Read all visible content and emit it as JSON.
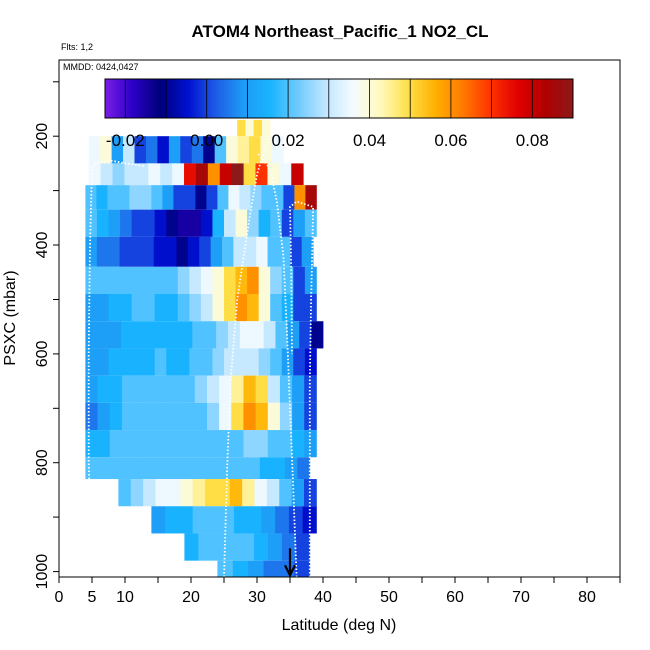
{
  "chart_data": {
    "type": "heatmap",
    "title": "ATOM4 Northeast_Pacific_1 NO2_CL",
    "flights_label": "Flts: 1,2",
    "mmdd_label": "MMDD: 0424,0427",
    "xlabel": "Latitude (deg N)",
    "ylabel": "PSXC (mbar)",
    "xlim": [
      0,
      85
    ],
    "ylim": [
      1010,
      60
    ],
    "x_ticks": [
      0,
      5,
      10,
      20,
      30,
      40,
      50,
      60,
      70,
      80
    ],
    "y_ticks": [
      200,
      400,
      600,
      800,
      1000
    ],
    "colorbar": {
      "range": [
        -0.025,
        0.09
      ],
      "ticks": [
        -0.02,
        0.0,
        0.02,
        0.04,
        0.06,
        0.08
      ],
      "tick_labels": [
        "-0.02",
        "0.00",
        "0.02",
        "0.04",
        "0.06",
        "0.08"
      ],
      "colors": [
        "#7a1ee6",
        "#2b00c8",
        "#00007a",
        "#0010d0",
        "#1e5ae6",
        "#1e9af5",
        "#19b4ff",
        "#6ecaff",
        "#bfe6ff",
        "#f4fbff",
        "#fff9c0",
        "#ffe14a",
        "#ffb000",
        "#ff7a00",
        "#ff3300",
        "#e00000",
        "#b00000",
        "#8b1a1a"
      ]
    },
    "rows": [
      {
        "p0": 170,
        "p1": 200,
        "x0": 27,
        "x1": 32,
        "values": [
          0.05,
          0.04,
          0.05,
          0.04
        ]
      },
      {
        "p0": 200,
        "p1": 250,
        "x0": 4.5,
        "x1": 34,
        "values": [
          0.035,
          0.04,
          0.01,
          0.03,
          0.0,
          0.005,
          -0.005,
          0.01,
          0.0,
          0.005,
          -0.01,
          0.02,
          0.04,
          0.045,
          0.05,
          0.04,
          0.035
        ]
      },
      {
        "p0": 250,
        "p1": 290,
        "x0": 4.5,
        "x1": 37,
        "values": [
          0.035,
          0.03,
          0.025,
          0.03,
          0.03,
          0.035,
          0.03,
          0.035,
          0.075,
          0.085,
          0.06,
          0.08,
          0.09,
          0.05,
          0.07,
          0.04,
          0.035,
          0.08
        ]
      },
      {
        "p0": 290,
        "p1": 335,
        "x0": 4,
        "x1": 39,
        "values": [
          0.02,
          0.015,
          0.02,
          0.02,
          0.025,
          0.025,
          0.02,
          0.01,
          0.0,
          0.0,
          -0.01,
          0.0,
          0.02,
          0.035,
          0.03,
          0.025,
          0.02,
          0.02,
          0.0,
          0.06,
          0.085
        ]
      },
      {
        "p0": 335,
        "p1": 385,
        "x0": 4,
        "x1": 39,
        "values": [
          0.02,
          0.015,
          0.01,
          0.005,
          0.0,
          0.0,
          -0.005,
          -0.01,
          -0.015,
          -0.015,
          -0.005,
          0.015,
          0.03,
          0.04,
          0.025,
          0.015,
          0.02,
          0.0,
          0.01,
          0.02
        ]
      },
      {
        "p0": 385,
        "p1": 440,
        "x0": 4,
        "x1": 38.5,
        "values": [
          0.01,
          0.005,
          0.005,
          0.0,
          0.0,
          0.0,
          -0.005,
          -0.005,
          -0.01,
          -0.005,
          0.0,
          0.01,
          0.02,
          0.03,
          0.03,
          0.035,
          0.02,
          0.02,
          0.0,
          0.01
        ]
      },
      {
        "p0": 440,
        "p1": 490,
        "x0": 4,
        "x1": 39,
        "values": [
          0.02,
          0.02,
          0.02,
          0.02,
          0.02,
          0.02,
          0.02,
          0.02,
          0.025,
          0.03,
          0.035,
          0.04,
          0.05,
          0.055,
          0.06,
          0.04,
          0.025,
          0.02,
          0.0,
          0.01
        ]
      },
      {
        "p0": 490,
        "p1": 540,
        "x0": 4,
        "x1": 39,
        "values": [
          0.01,
          0.01,
          0.015,
          0.015,
          0.02,
          0.02,
          0.015,
          0.015,
          0.02,
          0.025,
          0.03,
          0.04,
          0.05,
          0.06,
          0.055,
          0.04,
          0.02,
          0.015,
          0.0,
          0.0
        ]
      },
      {
        "p0": 540,
        "p1": 590,
        "x0": 4,
        "x1": 40,
        "values": [
          0.01,
          0.01,
          0.01,
          0.015,
          0.015,
          0.015,
          0.015,
          0.015,
          0.015,
          0.02,
          0.02,
          0.025,
          0.03,
          0.035,
          0.035,
          0.03,
          0.02,
          0.01,
          0.0,
          -0.01
        ]
      },
      {
        "p0": 590,
        "p1": 640,
        "x0": 4,
        "x1": 39,
        "values": [
          0.01,
          0.01,
          0.015,
          0.015,
          0.015,
          0.015,
          0.02,
          0.015,
          0.015,
          0.02,
          0.02,
          0.025,
          0.03,
          0.03,
          0.03,
          0.025,
          0.02,
          0.01,
          0.0,
          -0.005
        ]
      },
      {
        "p0": 640,
        "p1": 690,
        "x0": 4,
        "x1": 39,
        "values": [
          0.01,
          0.015,
          0.015,
          0.02,
          0.02,
          0.02,
          0.02,
          0.02,
          0.02,
          0.025,
          0.03,
          0.035,
          0.045,
          0.055,
          0.05,
          0.03,
          0.02,
          0.01,
          0.0
        ]
      },
      {
        "p0": 690,
        "p1": 740,
        "x0": 4,
        "x1": 39,
        "values": [
          0.005,
          0.01,
          0.015,
          0.02,
          0.02,
          0.02,
          0.02,
          0.02,
          0.02,
          0.02,
          0.025,
          0.035,
          0.05,
          0.06,
          0.055,
          0.04,
          0.025,
          0.01,
          0.0
        ]
      },
      {
        "p0": 740,
        "p1": 790,
        "x0": 4,
        "x1": 39,
        "values": [
          0.015,
          0.015,
          0.02,
          0.02,
          0.02,
          0.02,
          0.02,
          0.02,
          0.02,
          0.02,
          0.02,
          0.02,
          0.02,
          0.025,
          0.025,
          0.02,
          0.02,
          0.015,
          0.01
        ]
      },
      {
        "p0": 790,
        "p1": 830,
        "x0": 4,
        "x1": 38,
        "values": [
          0.02,
          0.02,
          0.02,
          0.02,
          0.02,
          0.02,
          0.02,
          0.02,
          0.02,
          0.02,
          0.02,
          0.02,
          0.02,
          0.02,
          0.015,
          0.015,
          0.01,
          0.005
        ]
      },
      {
        "p0": 830,
        "p1": 880,
        "x0": 9,
        "x1": 39,
        "values": [
          0.02,
          0.025,
          0.03,
          0.035,
          0.035,
          0.04,
          0.045,
          0.05,
          0.05,
          0.055,
          0.045,
          0.035,
          0.03,
          0.02,
          0.01,
          0.0
        ]
      },
      {
        "p0": 880,
        "p1": 930,
        "x0": 14,
        "x1": 39,
        "values": [
          0.01,
          0.015,
          0.015,
          0.02,
          0.02,
          0.02,
          0.015,
          0.015,
          0.01,
          0.005,
          0.0,
          -0.005
        ]
      },
      {
        "p0": 930,
        "p1": 980,
        "x0": 19,
        "x1": 38,
        "values": [
          0.015,
          0.02,
          0.02,
          0.02,
          0.02,
          0.015,
          0.01,
          0.005,
          0.0
        ]
      },
      {
        "p0": 980,
        "p1": 1010,
        "x0": 24,
        "x1": 38,
        "values": [
          0.02,
          0.015,
          0.01,
          0.005,
          0.005,
          0.0
        ]
      }
    ],
    "profiles": [
      {
        "points": [
          [
            5,
            1010
          ],
          [
            4.5,
            800
          ],
          [
            4.5,
            600
          ],
          [
            4.7,
            400
          ],
          [
            5,
            260
          ],
          [
            5.5,
            250
          ],
          [
            8,
            245
          ],
          [
            10,
            250
          ],
          [
            13,
            255
          ]
        ]
      },
      {
        "points": [
          [
            25,
            1010
          ],
          [
            25.5,
            800
          ],
          [
            26,
            650
          ],
          [
            27,
            500
          ],
          [
            28,
            420
          ],
          [
            29,
            340
          ],
          [
            30,
            270
          ],
          [
            31,
            230
          ],
          [
            32,
            200
          ]
        ]
      },
      {
        "points": [
          [
            36,
            1010
          ],
          [
            35.5,
            850
          ],
          [
            35,
            700
          ],
          [
            34.5,
            550
          ],
          [
            34,
            420
          ],
          [
            33,
            320
          ],
          [
            32,
            260
          ],
          [
            30,
            230
          ]
        ]
      },
      {
        "points": [
          [
            38,
            1010
          ],
          [
            38,
            850
          ],
          [
            38,
            650
          ],
          [
            38.2,
            500
          ],
          [
            38.4,
            400
          ],
          [
            38.5,
            330
          ],
          [
            36,
            320
          ],
          [
            35,
            330
          ],
          [
            35.2,
            450
          ],
          [
            35.3,
            600
          ]
        ]
      }
    ],
    "marker": {
      "x": 35,
      "p": 1005,
      "label": ""
    }
  }
}
